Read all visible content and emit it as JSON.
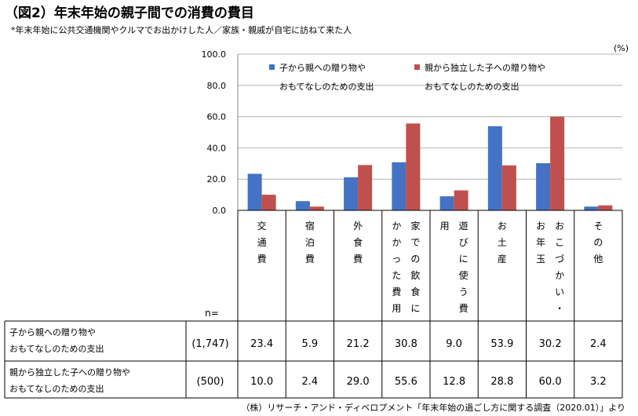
{
  "title": "（図2）年末年始の親子間での消費の費目",
  "subtitle": "*年末年始に公共交通機関やクルマでお出かけした人／家族・親戚が自宅に訪ねて来た人",
  "source": "（株）リサーチ・アンド・ディベロプメント「年末年始の過ごし方に関する調査（2020.01）」より",
  "chart_data": {
    "type": "bar",
    "unit": "(%)",
    "ylim": [
      0,
      100
    ],
    "yticks": [
      "0.0",
      "20.0",
      "40.0",
      "60.0",
      "80.0",
      "100.0"
    ],
    "grid": true,
    "legend_position": "top",
    "categories": [
      [
        "交",
        "通",
        "費"
      ],
      [
        "宿",
        "泊",
        "費"
      ],
      [
        "外",
        "食",
        "費"
      ],
      [
        "家",
        "で",
        "の",
        "飲",
        "食",
        "に",
        "か",
        "か",
        "っ",
        "た",
        "費",
        "用"
      ],
      [
        "遊",
        "び",
        "に",
        "使",
        "う",
        "費",
        "用"
      ],
      [
        "お",
        "土",
        "産"
      ],
      [
        "お",
        "こ",
        "づ",
        "か",
        "い",
        "・",
        "お",
        "年",
        "玉"
      ],
      [
        "そ",
        "の",
        "他"
      ]
    ],
    "series": [
      {
        "name": "子から親への贈り物や\nおもてなしのための支出",
        "legend_lines": [
          "子から親への贈り物や",
          "おもてなしのための支出"
        ],
        "table_lines": [
          "子から親への贈り物や",
          "おもてなしのための支出"
        ],
        "n": "(1,747)",
        "color": "#4472c4",
        "values": [
          23.4,
          5.9,
          21.2,
          30.8,
          9.0,
          53.9,
          30.2,
          2.4
        ],
        "labels": [
          "23.4",
          "5.9",
          "21.2",
          "30.8",
          "9.0",
          "53.9",
          "30.2",
          "2.4"
        ]
      },
      {
        "name": "親から独立した子への贈り物や\nおもてなしのための支出",
        "legend_lines": [
          "親から独立した子への贈り物や",
          "おもてなしのための支出"
        ],
        "table_lines": [
          "親から独立した子への贈り物や",
          "おもてなしのための支出"
        ],
        "n": "(500)",
        "color": "#c0504d",
        "values": [
          10.0,
          2.4,
          29.0,
          55.6,
          12.8,
          28.8,
          60.0,
          3.2
        ],
        "labels": [
          "10.0",
          "2.4",
          "29.0",
          "55.6",
          "12.8",
          "28.8",
          "60.0",
          "3.2"
        ]
      }
    ],
    "n_label": "n="
  }
}
